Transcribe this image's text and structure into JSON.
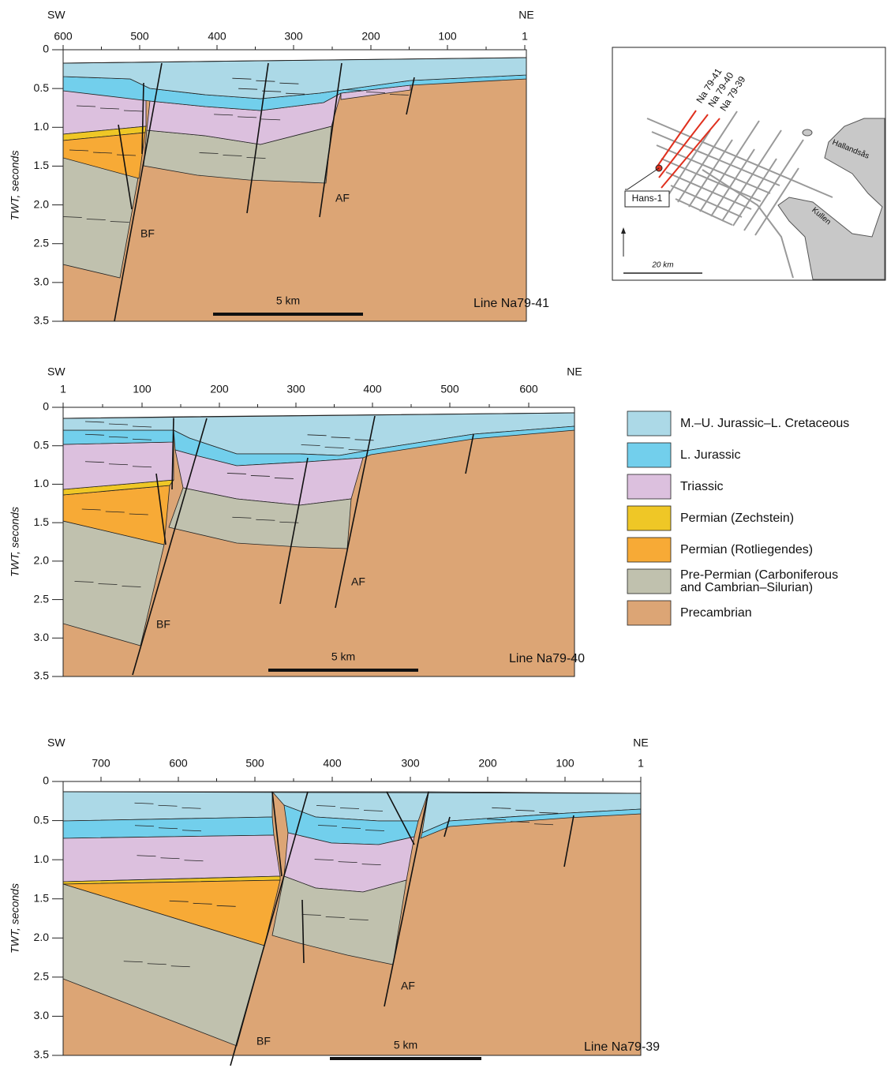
{
  "panels": [
    {
      "left_label": "SW",
      "right_label": "NE",
      "x_ticks": [
        "600",
        "500",
        "400",
        "300",
        "200",
        "100",
        "1"
      ],
      "y_ticks": [
        "0",
        "0.5",
        "1.0",
        "1.5",
        "2.0",
        "2.5",
        "3.0",
        "3.5"
      ],
      "y_axis_label": "TWT, seconds",
      "fault_labels": [
        "BF",
        "AF"
      ],
      "scale_label": "5 km",
      "line_label": "Line Na79-41"
    },
    {
      "left_label": "SW",
      "right_label": "NE",
      "x_ticks": [
        "1",
        "100",
        "200",
        "300",
        "400",
        "500",
        "600"
      ],
      "y_ticks": [
        "0",
        "0.5",
        "1.0",
        "1.5",
        "2.0",
        "2.5",
        "3.0",
        "3.5"
      ],
      "y_axis_label": "TWT, seconds",
      "fault_labels": [
        "BF",
        "AF"
      ],
      "scale_label": "5 km",
      "line_label": "Line Na79-40"
    },
    {
      "left_label": "SW",
      "right_label": "NE",
      "x_ticks": [
        "700",
        "600",
        "500",
        "400",
        "300",
        "200",
        "100",
        "1"
      ],
      "y_ticks": [
        "0",
        "0.5",
        "1.0",
        "1.5",
        "2.0",
        "2.5",
        "3.0",
        "3.5"
      ],
      "y_axis_label": "TWT, seconds",
      "fault_labels": [
        "BF",
        "AF"
      ],
      "scale_label": "5 km",
      "line_label": "Line Na79-39"
    }
  ],
  "legend": [
    {
      "label": [
        "M.–U. Jurassic–L. Cretaceous"
      ],
      "color": "#acd9e7"
    },
    {
      "label": [
        "L. Jurassic"
      ],
      "color": "#72cfec"
    },
    {
      "label": [
        "Triassic"
      ],
      "color": "#dcc0de"
    },
    {
      "label": [
        "Permian (Zechstein)"
      ],
      "color": "#efc726"
    },
    {
      "label": [
        "Permian (Rotliegendes)"
      ],
      "color": "#f7aa36"
    },
    {
      "label": [
        "Pre-Permian (Carboniferous",
        "and Cambrian–Silurian)"
      ],
      "color": "#c0c1ae"
    },
    {
      "label": [
        "Precambrian"
      ],
      "color": "#dca575"
    }
  ],
  "map": {
    "lines": [
      "Na 79-41",
      "Na 79-40",
      "Na 79-39"
    ],
    "places": [
      "Hallandsås",
      "Kullen"
    ],
    "well": "Hans-1",
    "scale": "20 km"
  }
}
